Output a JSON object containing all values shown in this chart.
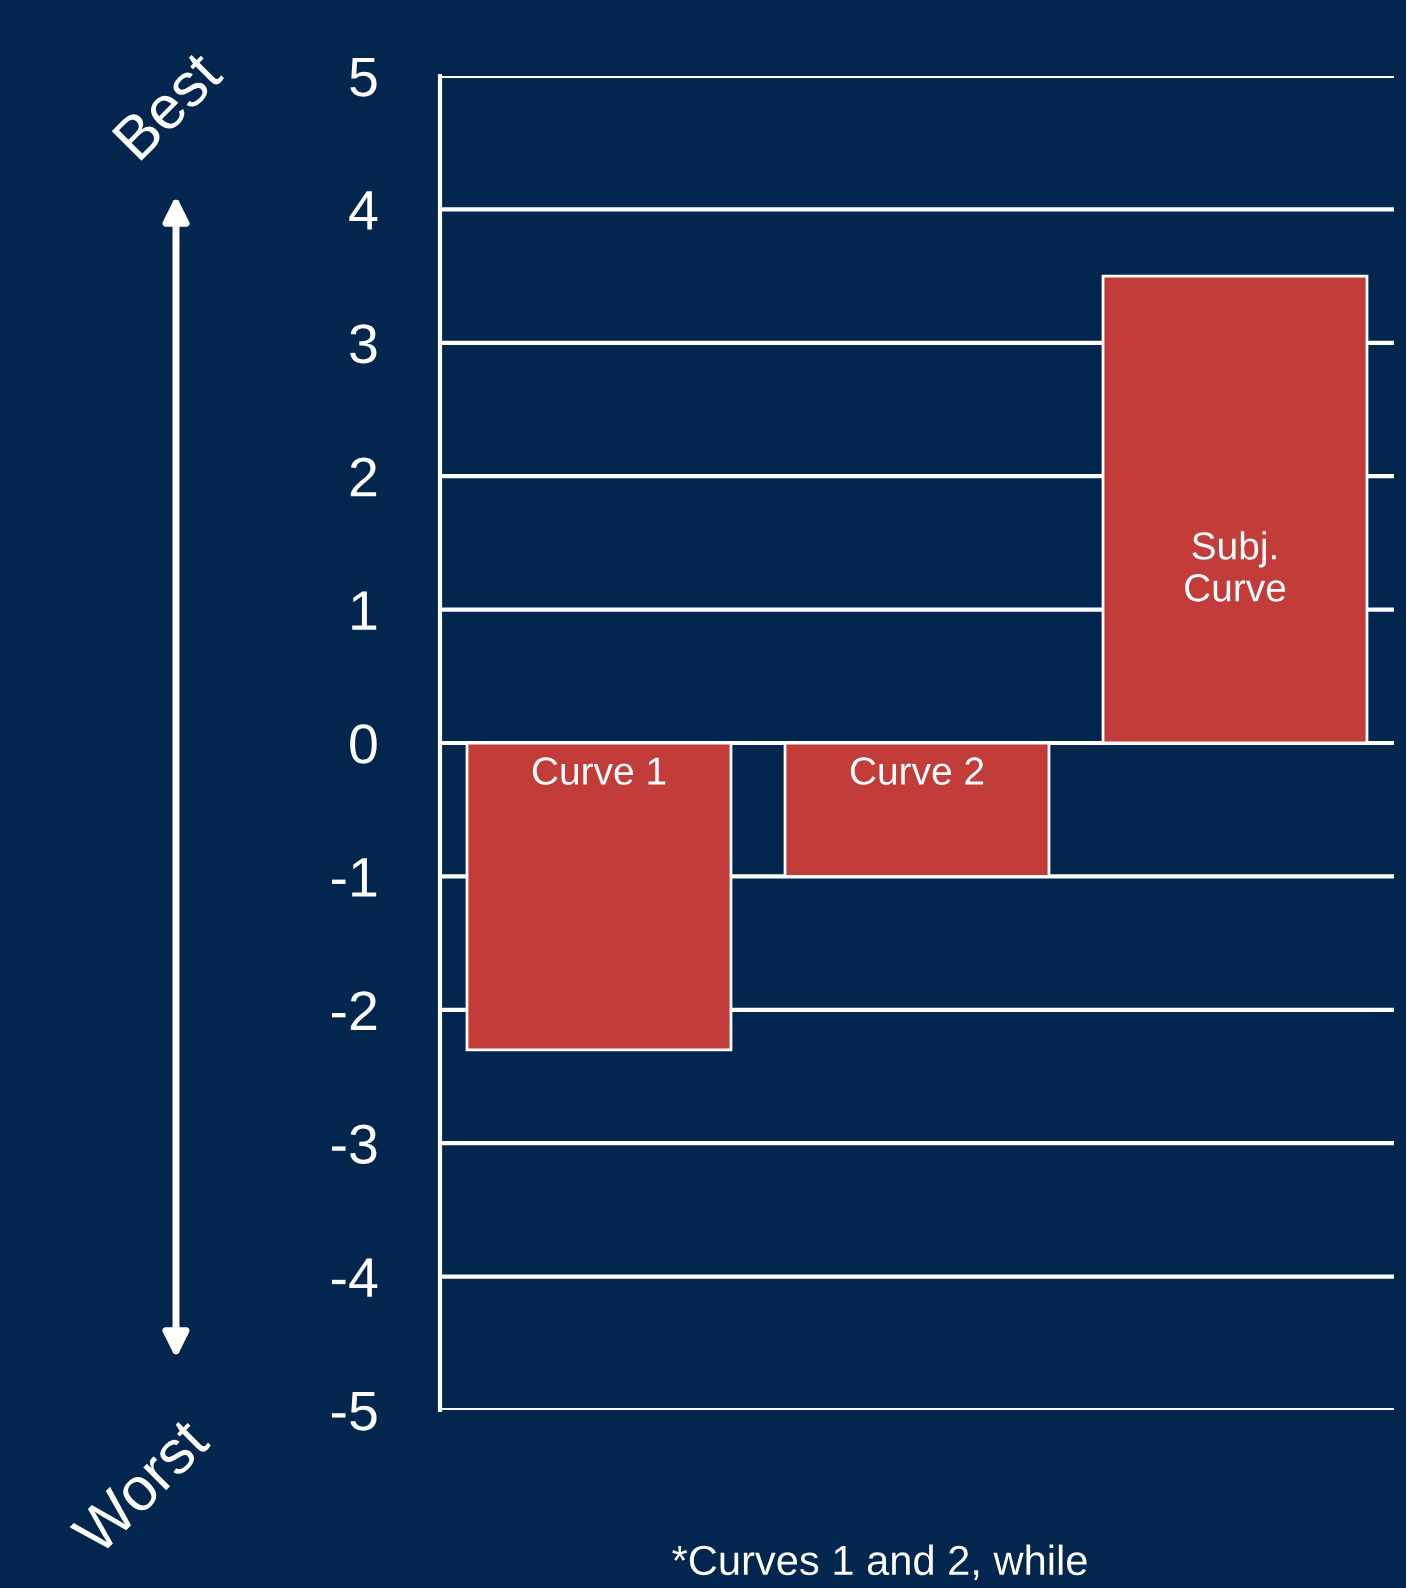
{
  "chart_data": {
    "type": "bar",
    "categories": [
      "Curve 1",
      "Curve 2",
      "Subj.\nCurve"
    ],
    "values": [
      -2.3,
      -1,
      3.5
    ],
    "color": "#c23c3a",
    "ylim": [
      -5,
      5
    ],
    "yticks": [
      -5,
      -4,
      -3,
      -2,
      -1,
      0,
      1,
      2,
      3,
      4,
      5
    ],
    "grid": "y",
    "tick_labels": "y",
    "annotations": [
      "Best",
      "Worst",
      "*Curves 1 and 2, while"
    ]
  }
}
